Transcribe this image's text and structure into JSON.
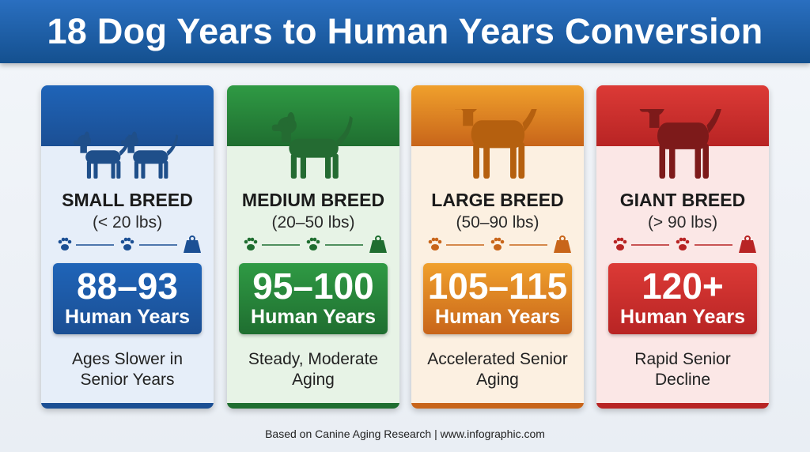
{
  "header": {
    "title": "18 Dog Years to Human Years Conversion"
  },
  "cards": [
    {
      "name": "SMALL BREED",
      "weight": "(< 20 lbs)",
      "range": "88–93",
      "unit": "Human Years",
      "description": "Ages Slower in Senior Years"
    },
    {
      "name": "MEDIUM BREED",
      "weight": "(20–50 lbs)",
      "range": "95–100",
      "unit": "Human Years",
      "description": "Steady, Moderate Aging"
    },
    {
      "name": "LARGE BREED",
      "weight": "(50–90 lbs)",
      "range": "105–115",
      "unit": "Human Years",
      "description": "Accelerated Senior Aging"
    },
    {
      "name": "GIANT BREED",
      "weight": "(> 90 lbs)",
      "range": "120+",
      "unit": "Human Years",
      "description": "Rapid Senior Decline"
    }
  ],
  "footer": {
    "source": "Based on Canine Aging Research | www.infographic.com"
  }
}
